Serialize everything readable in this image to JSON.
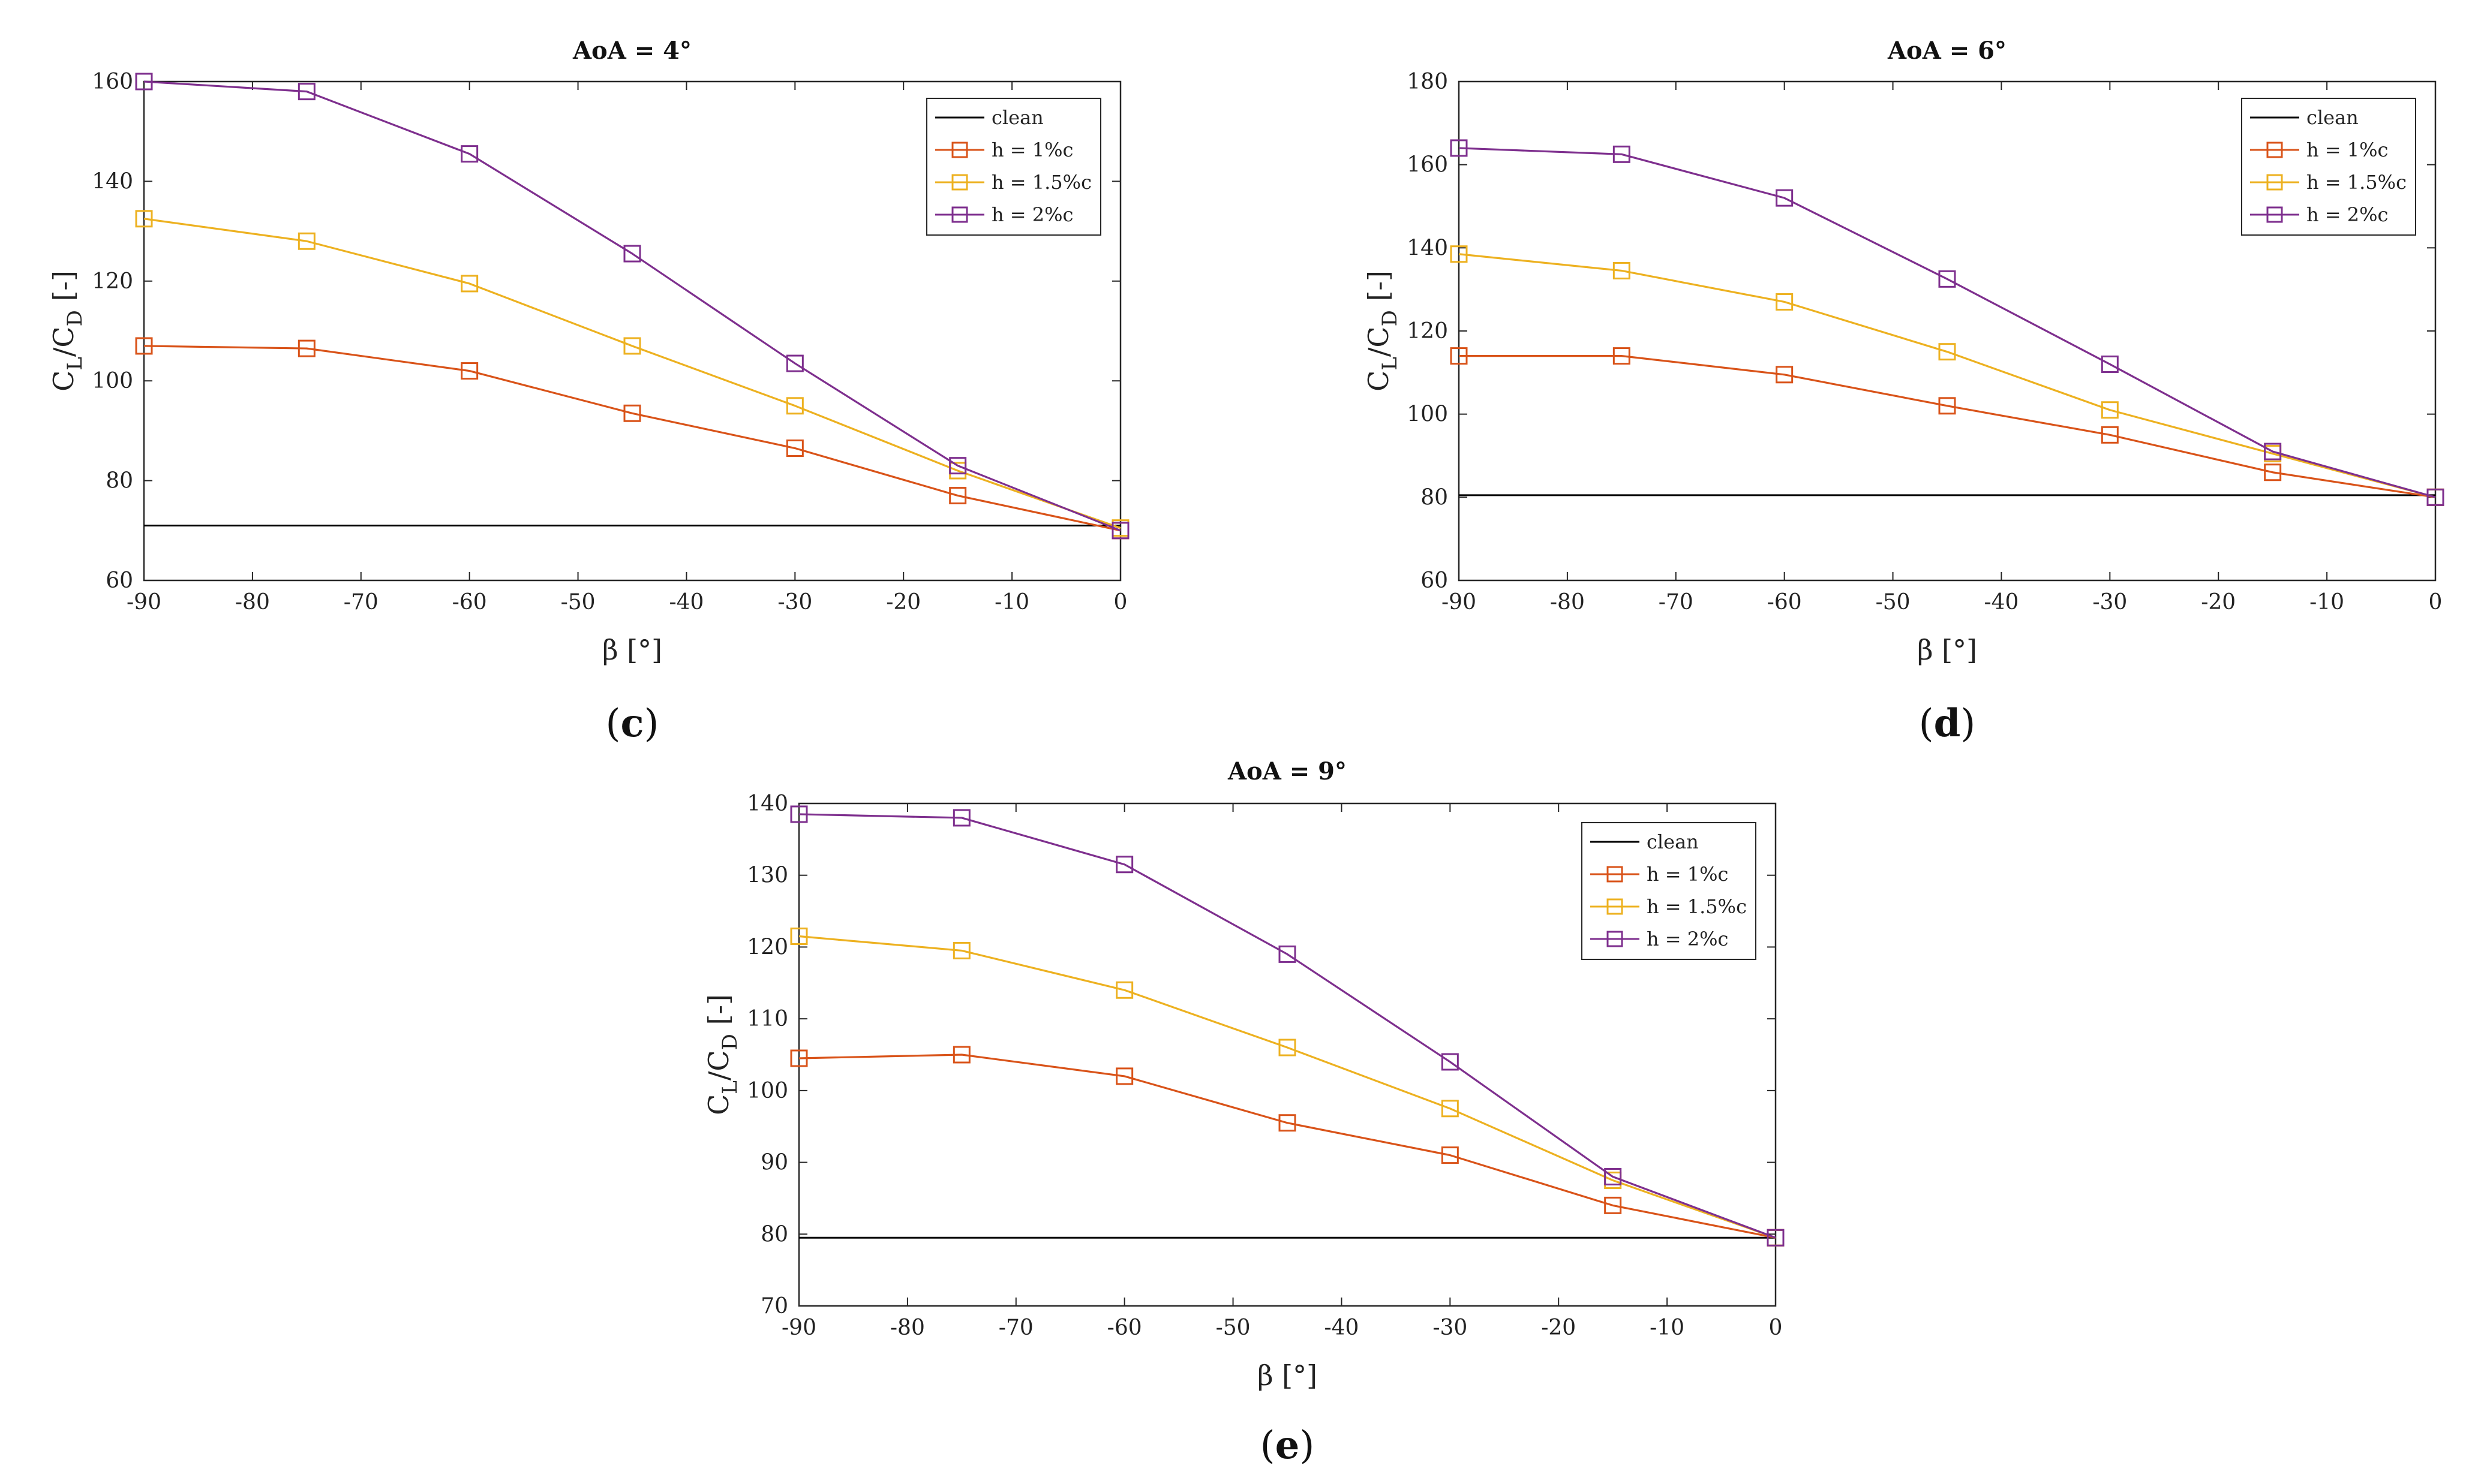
{
  "colors": {
    "clean": "#000000",
    "h1": "#D95319",
    "h15": "#EDB120",
    "h2": "#7E2F8E"
  },
  "chart_data": [
    {
      "type": "line",
      "panel_label": "c",
      "title": "AoA = 4°",
      "xlabel": "β [°]",
      "ylabel_main": "C",
      "ylabel_sub1": "L",
      "ylabel_mid": "/C",
      "ylabel_sub2": "D",
      "ylabel_end": " [-]",
      "xlim": [
        -90,
        0
      ],
      "ylim": [
        60,
        160
      ],
      "xticks": [
        -90,
        -80,
        -70,
        -60,
        -50,
        -40,
        -30,
        -20,
        -10,
        0
      ],
      "yticks": [
        60,
        80,
        100,
        120,
        140,
        160
      ],
      "x": [
        -90,
        -75,
        -60,
        -45,
        -30,
        -15,
        0
      ],
      "legend_position": "top-right",
      "series": [
        {
          "name": "clean",
          "color_key": "clean",
          "marker": "none",
          "values": [
            71,
            71,
            71,
            71,
            71,
            71,
            71
          ]
        },
        {
          "name": "h = 1%c",
          "color_key": "h1",
          "marker": "square",
          "values": [
            107,
            106.5,
            102,
            93.5,
            86.5,
            77,
            70
          ]
        },
        {
          "name": "h = 1.5%c",
          "color_key": "h15",
          "marker": "square",
          "values": [
            132.5,
            128,
            119.5,
            107,
            95,
            82,
            70.5
          ]
        },
        {
          "name": "h = 2%c",
          "color_key": "h2",
          "marker": "square",
          "values": [
            160,
            158,
            145.5,
            125.5,
            103.5,
            83,
            70
          ]
        }
      ]
    },
    {
      "type": "line",
      "panel_label": "d",
      "title": "AoA = 6°",
      "xlabel": "β [°]",
      "ylabel_main": "C",
      "ylabel_sub1": "L",
      "ylabel_mid": "/C",
      "ylabel_sub2": "D",
      "ylabel_end": " [-]",
      "xlim": [
        -90,
        0
      ],
      "ylim": [
        60,
        180
      ],
      "xticks": [
        -90,
        -80,
        -70,
        -60,
        -50,
        -40,
        -30,
        -20,
        -10,
        0
      ],
      "yticks": [
        60,
        80,
        100,
        120,
        140,
        160,
        180
      ],
      "x": [
        -90,
        -75,
        -60,
        -45,
        -30,
        -15,
        0
      ],
      "legend_position": "top-right",
      "series": [
        {
          "name": "clean",
          "color_key": "clean",
          "marker": "none",
          "values": [
            80.5,
            80.5,
            80.5,
            80.5,
            80.5,
            80.5,
            80.5
          ]
        },
        {
          "name": "h = 1%c",
          "color_key": "h1",
          "marker": "square",
          "values": [
            114,
            114,
            109.5,
            102,
            95,
            86,
            80
          ]
        },
        {
          "name": "h = 1.5%c",
          "color_key": "h15",
          "marker": "square",
          "values": [
            138.5,
            134.5,
            127,
            115,
            101,
            90.5,
            80
          ]
        },
        {
          "name": "h = 2%c",
          "color_key": "h2",
          "marker": "square",
          "values": [
            164,
            162.5,
            152,
            132.5,
            112,
            91,
            80
          ]
        }
      ]
    },
    {
      "type": "line",
      "panel_label": "e",
      "title": "AoA = 9°",
      "xlabel": "β [°]",
      "ylabel_main": "C",
      "ylabel_sub1": "L",
      "ylabel_mid": "/C",
      "ylabel_sub2": "D",
      "ylabel_end": " [-]",
      "xlim": [
        -90,
        0
      ],
      "ylim": [
        70,
        140
      ],
      "xticks": [
        -90,
        -80,
        -70,
        -60,
        -50,
        -40,
        -30,
        -20,
        -10,
        0
      ],
      "yticks": [
        70,
        80,
        90,
        100,
        110,
        120,
        130,
        140
      ],
      "x": [
        -90,
        -75,
        -60,
        -45,
        -30,
        -15,
        0
      ],
      "legend_position": "top-right",
      "series": [
        {
          "name": "clean",
          "color_key": "clean",
          "marker": "none",
          "values": [
            79.5,
            79.5,
            79.5,
            79.5,
            79.5,
            79.5,
            79.5
          ]
        },
        {
          "name": "h = 1%c",
          "color_key": "h1",
          "marker": "square",
          "values": [
            104.5,
            105,
            102,
            95.5,
            91,
            84,
            79.5
          ]
        },
        {
          "name": "h = 1.5%c",
          "color_key": "h15",
          "marker": "square",
          "values": [
            121.5,
            119.5,
            114,
            106,
            97.5,
            87.5,
            79.5
          ]
        },
        {
          "name": "h = 2%c",
          "color_key": "h2",
          "marker": "square",
          "values": [
            138.5,
            138,
            131.5,
            119,
            104,
            88,
            79.5
          ]
        }
      ]
    }
  ]
}
